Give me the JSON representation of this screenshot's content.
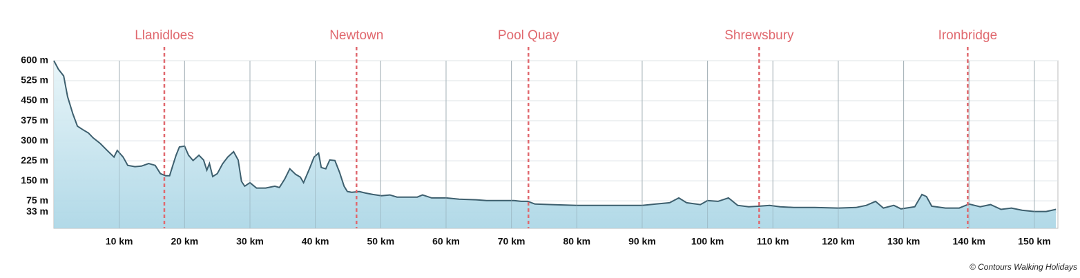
{
  "chart_data": {
    "type": "area",
    "x": [
      0,
      0.7,
      1.5,
      2.1,
      2.9,
      3.6,
      4.4,
      5.3,
      6.0,
      7.1,
      8.1,
      9.2,
      9.7,
      10.6,
      11.3,
      12.4,
      13.4,
      14.5,
      15.5,
      16.3,
      17.1,
      17.7,
      18.2,
      18.7,
      19.2,
      20.0,
      20.6,
      21.3,
      22.2,
      22.9,
      23.4,
      23.8,
      24.3,
      25.0,
      25.8,
      26.6,
      27.5,
      28.2,
      28.7,
      29.2,
      30.0,
      31.0,
      32.4,
      33.8,
      34.5,
      35.3,
      36.1,
      37.0,
      37.7,
      38.2,
      39.1,
      39.8,
      40.5,
      40.9,
      41.6,
      42.2,
      43.0,
      43.7,
      44.4,
      44.9,
      45.6,
      46.7,
      47.7,
      48.8,
      50.1,
      51.4,
      52.5,
      54.1,
      55.6,
      56.4,
      57.8,
      60.0,
      62.0,
      64.6,
      66.2,
      68.8,
      70.4,
      71.5,
      72.5,
      73.6,
      76.2,
      80.0,
      83.6,
      87.3,
      90.0,
      92.1,
      94.2,
      95.6,
      96.8,
      98.9,
      100.0,
      101.6,
      103.2,
      104.6,
      106.3,
      107.9,
      109.5,
      111.1,
      113.2,
      116.4,
      120.0,
      122.7,
      124.3,
      125.7,
      126.9,
      128.5,
      129.6,
      131.7,
      132.8,
      133.5,
      134.3,
      136.4,
      138.5,
      140.0,
      141.7,
      143.3,
      144.9,
      146.5,
      148.1,
      150.0,
      151.8,
      153.3
    ],
    "series": [
      {
        "color": "#3d5f6e",
        "values": [
          600,
          568,
          543,
          465,
          401,
          355,
          342,
          329,
          311,
          290,
          265,
          239,
          264,
          239,
          208,
          203,
          205,
          215,
          208,
          177,
          169,
          169,
          208,
          246,
          277,
          280,
          246,
          226,
          246,
          228,
          190,
          215,
          166,
          177,
          213,
          239,
          259,
          228,
          148,
          130,
          143,
          123,
          123,
          130,
          125,
          156,
          195,
          174,
          164,
          143,
          195,
          239,
          254,
          200,
          195,
          228,
          226,
          182,
          130,
          110,
          107,
          110,
          104,
          99,
          94,
          97,
          89,
          89,
          89,
          97,
          86,
          86,
          81,
          79,
          76,
          76,
          76,
          73,
          73,
          63,
          61,
          58,
          58,
          58,
          58,
          63,
          68,
          86,
          68,
          61,
          76,
          73,
          86,
          58,
          53,
          55,
          58,
          53,
          50,
          50,
          48,
          50,
          58,
          73,
          48,
          58,
          45,
          53,
          99,
          91,
          55,
          48,
          48,
          63,
          53,
          61,
          43,
          48,
          40,
          35,
          35,
          43
        ]
      }
    ],
    "xlim": [
      0,
      153.6
    ],
    "ylim": [
      -28,
      600
    ],
    "xticks": [
      {
        "value": 10,
        "label": "10 km"
      },
      {
        "value": 20,
        "label": "20 km"
      },
      {
        "value": 30,
        "label": "30 km"
      },
      {
        "value": 40,
        "label": "40 km"
      },
      {
        "value": 50,
        "label": "50 km"
      },
      {
        "value": 60,
        "label": "60 km"
      },
      {
        "value": 70,
        "label": "70 km"
      },
      {
        "value": 80,
        "label": "80 km"
      },
      {
        "value": 90,
        "label": "90 km"
      },
      {
        "value": 100,
        "label": "100 km"
      },
      {
        "value": 110,
        "label": "110 km"
      },
      {
        "value": 120,
        "label": "120 km"
      },
      {
        "value": 130,
        "label": "130 km"
      },
      {
        "value": 140,
        "label": "140 km"
      },
      {
        "value": 150,
        "label": "150 km"
      }
    ],
    "yticks": [
      {
        "value": 600,
        "label": "600 m"
      },
      {
        "value": 525,
        "label": "525 m"
      },
      {
        "value": 450,
        "label": "450 m"
      },
      {
        "value": 375,
        "label": "375 m"
      },
      {
        "value": 300,
        "label": "300 m"
      },
      {
        "value": 225,
        "label": "225 m"
      },
      {
        "value": 150,
        "label": "150 m"
      },
      {
        "value": 75,
        "label": "75 m"
      },
      {
        "value": 33,
        "label": "33 m"
      }
    ],
    "grid": true,
    "markers": [
      {
        "label": "Llanidloes",
        "x": 16.9,
        "color": "#e0686e"
      },
      {
        "label": "Newtown",
        "x": 46.3,
        "color": "#e0686e"
      },
      {
        "label": "Pool Quay",
        "x": 72.6,
        "color": "#e0686e"
      },
      {
        "label": "Shrewsbury",
        "x": 107.9,
        "color": "#e0686e"
      },
      {
        "label": "Ironbridge",
        "x": 139.8,
        "color": "#e0686e"
      }
    ],
    "credit": "© Contours Walking Holidays"
  }
}
